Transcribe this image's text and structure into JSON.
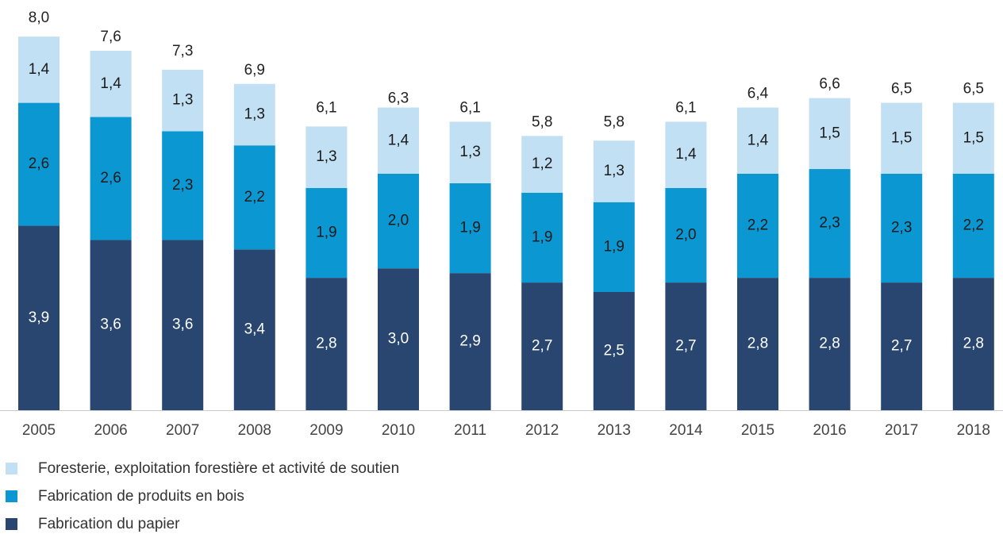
{
  "chart_data": {
    "type": "stacked_bar",
    "categories": [
      "2005",
      "2006",
      "2007",
      "2008",
      "2009",
      "2010",
      "2011",
      "2012",
      "2013",
      "2014",
      "2015",
      "2016",
      "2017",
      "2018"
    ],
    "series": [
      {
        "name": "Fabrication du papier",
        "color": "#284670",
        "values": [
          3.9,
          3.6,
          3.6,
          3.4,
          2.8,
          3.0,
          2.9,
          2.7,
          2.5,
          2.7,
          2.8,
          2.8,
          2.7,
          2.8
        ],
        "value_labels": [
          "3,9",
          "3,6",
          "3,6",
          "3,4",
          "2,8",
          "3,0",
          "2,9",
          "2,7",
          "2,5",
          "2,7",
          "2,8",
          "2,8",
          "2,7",
          "2,8"
        ]
      },
      {
        "name": "Fabrication de produits en bois",
        "color": "#0b97d1",
        "values": [
          2.6,
          2.6,
          2.3,
          2.2,
          1.9,
          2.0,
          1.9,
          1.9,
          1.9,
          2.0,
          2.2,
          2.3,
          2.3,
          2.2
        ],
        "value_labels": [
          "2,6",
          "2,6",
          "2,3",
          "2,2",
          "1,9",
          "2,0",
          "1,9",
          "1,9",
          "1,9",
          "2,0",
          "2,2",
          "2,3",
          "2,3",
          "2,2"
        ]
      },
      {
        "name": "Foresterie, exploitation forestière et activité de soutien",
        "color": "#c2e0f3",
        "values": [
          1.4,
          1.4,
          1.3,
          1.3,
          1.3,
          1.4,
          1.3,
          1.2,
          1.3,
          1.4,
          1.4,
          1.5,
          1.5,
          1.5
        ],
        "value_labels": [
          "1,4",
          "1,4",
          "1,3",
          "1,3",
          "1,3",
          "1,4",
          "1,3",
          "1,2",
          "1,3",
          "1,4",
          "1,4",
          "1,5",
          "1,5",
          "1,5"
        ]
      }
    ],
    "totals": [
      8.0,
      7.6,
      7.3,
      6.9,
      6.1,
      6.3,
      6.1,
      5.8,
      5.8,
      6.1,
      6.4,
      6.6,
      6.5,
      6.5
    ],
    "total_labels": [
      "8,0",
      "7,6",
      "7,3",
      "6,9",
      "6,1",
      "6,3",
      "6,1",
      "5,8",
      "5,8",
      "6,1",
      "6,4",
      "6,6",
      "6,5",
      "6,5"
    ]
  }
}
